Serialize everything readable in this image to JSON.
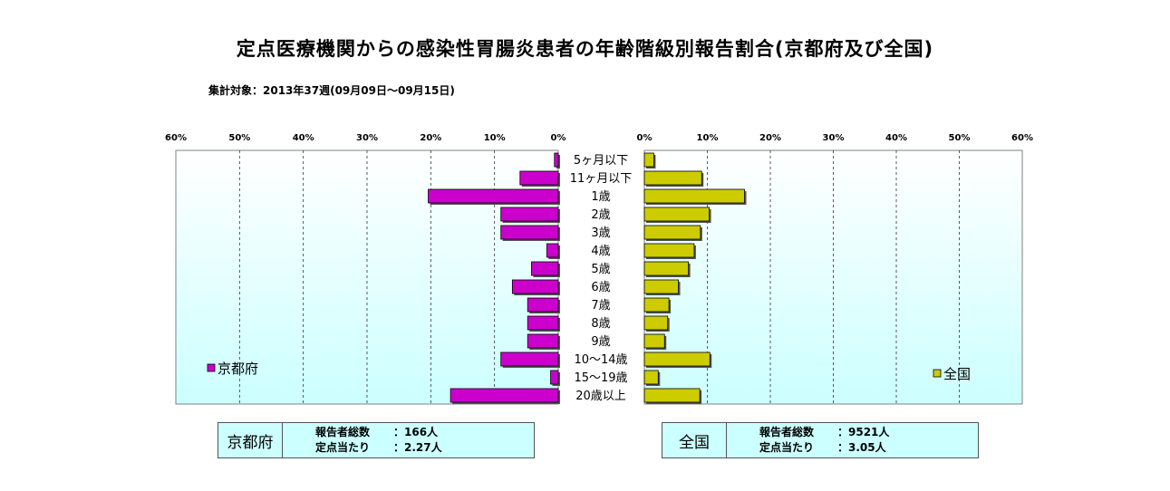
{
  "title": "定点医療機関からの感染性胃腸炎患者の年齢階級別報告割合(京都府及び全国)",
  "subtitle": "集計対象：2013年37週(09月09日～09月15日)",
  "colors": {
    "kyoto": "#cc00cc",
    "national": "#cccc00",
    "plot_bg_top": "#ffffff",
    "plot_bg_bottom": "#ccffff"
  },
  "chart_data": [
    {
      "type": "bar",
      "orientation": "horizontal",
      "direction": "leftward",
      "name": "京都府",
      "legend": "京都府",
      "categories": [
        "5ヶ月以下",
        "11ヶ月以下",
        "1歳",
        "2歳",
        "3歳",
        "4歳",
        "5歳",
        "6歳",
        "7歳",
        "8歳",
        "9歳",
        "10～14歳",
        "15～19歳",
        "20歳以上"
      ],
      "values": [
        0.6,
        6.0,
        20.4,
        9.0,
        9.0,
        1.8,
        4.2,
        7.2,
        4.8,
        4.8,
        4.8,
        9.0,
        1.2,
        16.9
      ],
      "xlim": [
        0,
        60
      ],
      "ticks": [
        "60%",
        "50%",
        "40%",
        "30%",
        "20%",
        "10%",
        "0%"
      ],
      "legend_position": "bottom-left"
    },
    {
      "type": "bar",
      "orientation": "horizontal",
      "direction": "rightward",
      "name": "全国",
      "legend": "全国",
      "categories": [
        "5ヶ月以下",
        "11ヶ月以下",
        "1歳",
        "2歳",
        "3歳",
        "4歳",
        "5歳",
        "6歳",
        "7歳",
        "8歳",
        "9歳",
        "10～14歳",
        "15～19歳",
        "20歳以上"
      ],
      "values": [
        1.5,
        9.1,
        15.9,
        10.3,
        8.9,
        7.9,
        7.0,
        5.4,
        3.9,
        3.7,
        3.2,
        10.4,
        2.2,
        8.8
      ],
      "xlim": [
        0,
        60
      ],
      "ticks": [
        "0%",
        "10%",
        "20%",
        "30%",
        "40%",
        "50%",
        "60%"
      ],
      "legend_position": "bottom-right"
    }
  ],
  "summary": {
    "kyoto": {
      "name": "京都府",
      "reporters_label": "報告者総数",
      "reporters_value": "：166人",
      "per_site_label": "定点当たり",
      "per_site_value": "：2.27人"
    },
    "national": {
      "name": "全国",
      "reporters_label": "報告者総数",
      "reporters_value": "：9521人",
      "per_site_label": "定点当たり",
      "per_site_value": "：3.05人"
    }
  }
}
